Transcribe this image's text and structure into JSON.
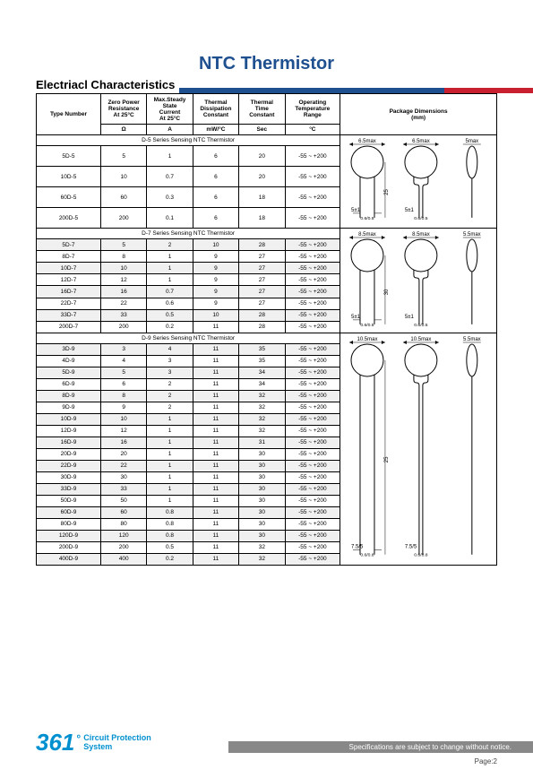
{
  "title": "NTC Thermistor",
  "section_title": "Electriacl Characteristics",
  "columns": {
    "c1": "Type Number",
    "c2": "Zero Power\nResistance\nAt 25°C",
    "c3": "Max.Steady\nState\nCurrent\nAt 25°C",
    "c4": "Thermal\nDissipation\nConstant",
    "c5": "Thermal\nTime\nConstant",
    "c6": "Operating\nTemperature\nRange",
    "c7": "Package Dimensions\n(mm)"
  },
  "units": {
    "c2": "Ω",
    "c3": "A",
    "c4": "mW/°C",
    "c5": "Sec",
    "c6": "°C"
  },
  "series": {
    "d5": "D-5 Series Sensing NTC Thermistor",
    "d7": "D-7 Series Sensing NTC Thermistor",
    "d9": "D-9 Series Sensing NTC Thermistor"
  },
  "d5_rows": [
    {
      "type": "5D-5",
      "r": "5",
      "i": "1",
      "td": "6",
      "tt": "20",
      "ot": "-55 ~ +200"
    },
    {
      "type": "10D-5",
      "r": "10",
      "i": "0.7",
      "td": "6",
      "tt": "20",
      "ot": "-55 ~ +200"
    },
    {
      "type": "60D-5",
      "r": "60",
      "i": "0.3",
      "td": "6",
      "tt": "18",
      "ot": "-55 ~ +200"
    },
    {
      "type": "200D-5",
      "r": "200",
      "i": "0.1",
      "td": "6",
      "tt": "18",
      "ot": "-55 ~ +200"
    }
  ],
  "d7_rows": [
    {
      "type": "5D-7",
      "r": "5",
      "i": "2",
      "td": "10",
      "tt": "28",
      "ot": "-55 ~ +200"
    },
    {
      "type": "8D-7",
      "r": "8",
      "i": "1",
      "td": "9",
      "tt": "27",
      "ot": "-55 ~ +200"
    },
    {
      "type": "10D-7",
      "r": "10",
      "i": "1",
      "td": "9",
      "tt": "27",
      "ot": "-55 ~ +200"
    },
    {
      "type": "12D-7",
      "r": "12",
      "i": "1",
      "td": "9",
      "tt": "27",
      "ot": "-55 ~ +200"
    },
    {
      "type": "16D-7",
      "r": "16",
      "i": "0.7",
      "td": "9",
      "tt": "27",
      "ot": "-55 ~ +200"
    },
    {
      "type": "22D-7",
      "r": "22",
      "i": "0.6",
      "td": "9",
      "tt": "27",
      "ot": "-55 ~ +200"
    },
    {
      "type": "33D-7",
      "r": "33",
      "i": "0.5",
      "td": "10",
      "tt": "28",
      "ot": "-55 ~ +200"
    },
    {
      "type": "200D-7",
      "r": "200",
      "i": "0.2",
      "td": "11",
      "tt": "28",
      "ot": "-55 ~ +200"
    }
  ],
  "d9_rows": [
    {
      "type": "3D-9",
      "r": "3",
      "i": "4",
      "td": "11",
      "tt": "35",
      "ot": "-55 ~ +200"
    },
    {
      "type": "4D-9",
      "r": "4",
      "i": "3",
      "td": "11",
      "tt": "35",
      "ot": "-55 ~ +200"
    },
    {
      "type": "5D-9",
      "r": "5",
      "i": "3",
      "td": "11",
      "tt": "34",
      "ot": "-55 ~ +200"
    },
    {
      "type": "6D-9",
      "r": "6",
      "i": "2",
      "td": "11",
      "tt": "34",
      "ot": "-55 ~ +200"
    },
    {
      "type": "8D-9",
      "r": "8",
      "i": "2",
      "td": "11",
      "tt": "32",
      "ot": "-55 ~ +200"
    },
    {
      "type": "9D-9",
      "r": "9",
      "i": "2",
      "td": "11",
      "tt": "32",
      "ot": "-55 ~ +200"
    },
    {
      "type": "10D-9",
      "r": "10",
      "i": "1",
      "td": "11",
      "tt": "32",
      "ot": "-55 ~ +200"
    },
    {
      "type": "12D-9",
      "r": "12",
      "i": "1",
      "td": "11",
      "tt": "32",
      "ot": "-55 ~ +200"
    },
    {
      "type": "16D-9",
      "r": "16",
      "i": "1",
      "td": "11",
      "tt": "31",
      "ot": "-55 ~ +200"
    },
    {
      "type": "20D-9",
      "r": "20",
      "i": "1",
      "td": "11",
      "tt": "30",
      "ot": "-55 ~ +200"
    },
    {
      "type": "22D-9",
      "r": "22",
      "i": "1",
      "td": "11",
      "tt": "30",
      "ot": "-55 ~ +200"
    },
    {
      "type": "30D-9",
      "r": "30",
      "i": "1",
      "td": "11",
      "tt": "30",
      "ot": "-55 ~ +200"
    },
    {
      "type": "33D-9",
      "r": "33",
      "i": "1",
      "td": "11",
      "tt": "30",
      "ot": "-55 ~ +200"
    },
    {
      "type": "50D-9",
      "r": "50",
      "i": "1",
      "td": "11",
      "tt": "30",
      "ot": "-55 ~ +200"
    },
    {
      "type": "60D-9",
      "r": "60",
      "i": "0.8",
      "td": "11",
      "tt": "30",
      "ot": "-55 ~ +200"
    },
    {
      "type": "80D-9",
      "r": "80",
      "i": "0.8",
      "td": "11",
      "tt": "30",
      "ot": "-55 ~ +200"
    },
    {
      "type": "120D-9",
      "r": "120",
      "i": "0.8",
      "td": "11",
      "tt": "30",
      "ot": "-55 ~ +200"
    },
    {
      "type": "200D-9",
      "r": "200",
      "i": "0.5",
      "td": "11",
      "tt": "32",
      "ot": "-55 ~ +200"
    },
    {
      "type": "400D-9",
      "r": "400",
      "i": "0.2",
      "td": "11",
      "tt": "32",
      "ot": "-55 ~ +200"
    }
  ],
  "diagrams": {
    "d5": {
      "dia": "6.5max",
      "pitch": "5±1",
      "lead": "0.6/0.5",
      "side": "5max",
      "len": "25"
    },
    "d7": {
      "dia": "8.5max",
      "pitch": "5±1",
      "lead": "0.6/0.5",
      "side": "5.5max",
      "len": "30"
    },
    "d9": {
      "dia": "10.5max",
      "pitch": "7.5/5",
      "lead": "0.6/0.8",
      "side": "5.5max",
      "len": "25",
      "lead2": "0.6/0.1"
    }
  },
  "footer_text": "Specifications are subject to change without notice.",
  "page_label": "Page:2",
  "brand": {
    "num": "361",
    "deg": "°",
    "l1": "Circuit Protection",
    "l2": "System"
  },
  "col_widths": [
    "14%",
    "10%",
    "10%",
    "10%",
    "10%",
    "12%",
    "34%"
  ],
  "colors": {
    "blue": "#1e4f8f",
    "red": "#c8202f",
    "alt": "#f0f0f0",
    "cyan": "#0090d0",
    "gray": "#888"
  }
}
